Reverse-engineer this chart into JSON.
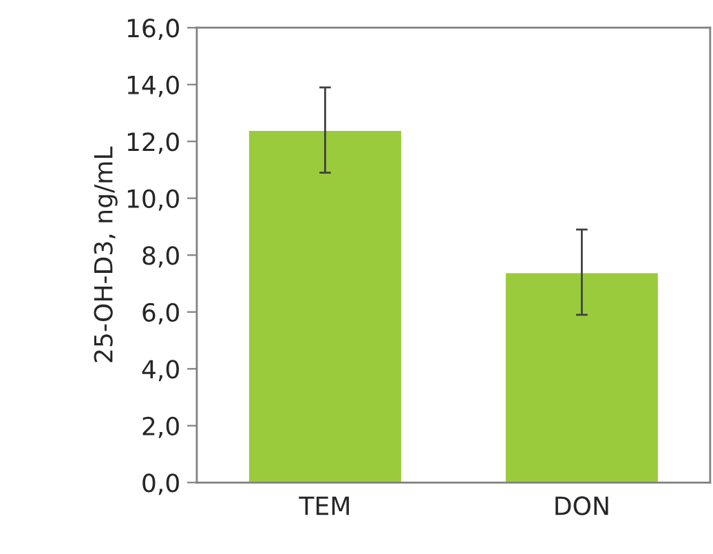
{
  "chart_data": {
    "type": "bar",
    "ylabel": "25-OH-D3, ng/mL",
    "categories": [
      "TEM",
      "DON"
    ],
    "values": [
      12.4,
      7.4
    ],
    "errors": [
      1.5,
      1.5
    ],
    "color": "#9acb3c",
    "ylim": [
      0,
      16
    ],
    "yticks": [
      {
        "value": 0,
        "label": "0,0"
      },
      {
        "value": 2,
        "label": "2,0"
      },
      {
        "value": 4,
        "label": "4,0"
      },
      {
        "value": 6,
        "label": "6,0"
      },
      {
        "value": 8,
        "label": "8,0"
      },
      {
        "value": 10,
        "label": "10,0"
      },
      {
        "value": 12,
        "label": "12,0"
      },
      {
        "value": 14,
        "label": "14,0"
      },
      {
        "value": 16,
        "label": "16,0"
      }
    ],
    "grid": false,
    "legend": false
  }
}
